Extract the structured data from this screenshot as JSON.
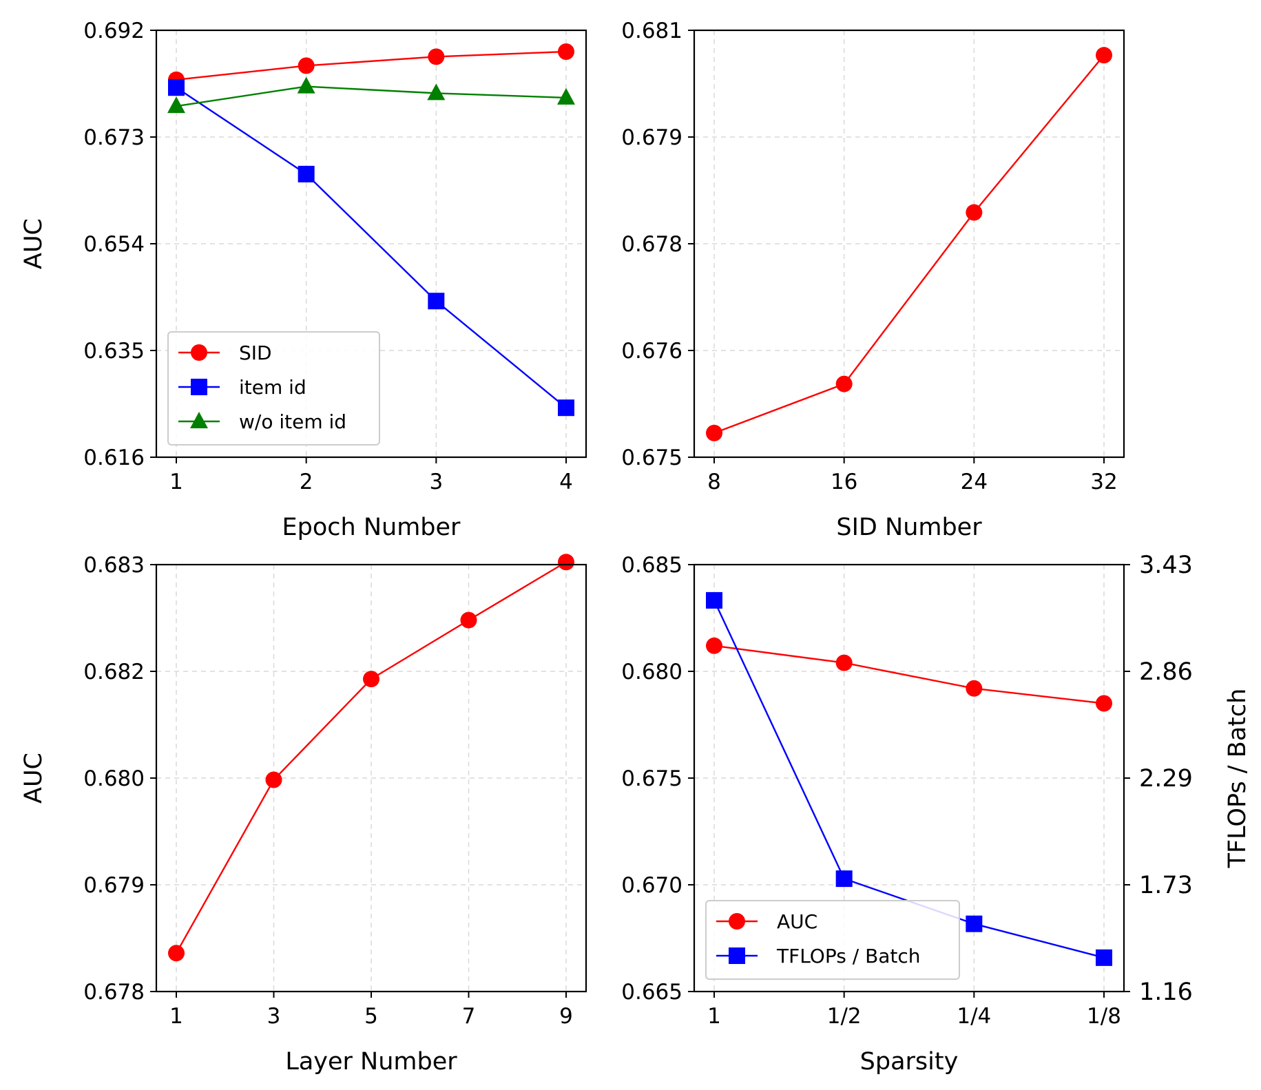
{
  "chart_data": [
    {
      "id": "epoch",
      "type": "line",
      "xlabel": "Epoch Number",
      "ylabel": "AUC",
      "categories": [
        "1",
        "2",
        "3",
        "4"
      ],
      "ylim": [
        0.616,
        0.692
      ],
      "yticks": [
        "0.616",
        "0.635",
        "0.654",
        "0.673",
        "0.692"
      ],
      "grid": true,
      "legend": "lower-left",
      "series": [
        {
          "name": "SID",
          "color": "#ff0000",
          "marker": "circle",
          "values": [
            0.6832,
            0.6857,
            0.6873,
            0.6882
          ]
        },
        {
          "name": "item id",
          "color": "#0000ff",
          "marker": "square",
          "values": [
            0.6818,
            0.6664,
            0.6438,
            0.6248
          ]
        },
        {
          "name": "w/o item id",
          "color": "#008000",
          "marker": "triangle",
          "values": [
            0.6785,
            0.682,
            0.6808,
            0.68
          ]
        }
      ]
    },
    {
      "id": "sid",
      "type": "line",
      "xlabel": "SID Number",
      "ylabel": "",
      "categories": [
        "8",
        "16",
        "24",
        "32"
      ],
      "ylim": [
        0.675,
        0.681
      ],
      "yticks": [
        "0.675",
        "0.676",
        "0.678",
        "0.679",
        "0.681"
      ],
      "grid": true,
      "series": [
        {
          "name": "SID",
          "color": "#ff0000",
          "marker": "circle",
          "values": [
            0.67534,
            0.67603,
            0.67844,
            0.68065
          ]
        }
      ]
    },
    {
      "id": "layer",
      "type": "line",
      "xlabel": "Layer Number",
      "ylabel": "AUC",
      "categories": [
        "1",
        "3",
        "5",
        "7",
        "9"
      ],
      "ylim": [
        0.678,
        0.683
      ],
      "yticks": [
        "0.678",
        "0.679",
        "0.680",
        "0.682",
        "0.683"
      ],
      "grid": true,
      "series": [
        {
          "name": "AUC",
          "color": "#ff0000",
          "marker": "circle",
          "values": [
            0.67845,
            0.68048,
            0.68166,
            0.68235,
            0.68303
          ]
        }
      ]
    },
    {
      "id": "sparsity",
      "type": "line",
      "xlabel": "Sparsity",
      "ylabel": "",
      "ylabel_right": "TFLOPs / Batch",
      "categories": [
        "1",
        "1/2",
        "1/4",
        "1/8"
      ],
      "ylim": [
        0.665,
        0.685
      ],
      "yticks": [
        "0.665",
        "0.670",
        "0.675",
        "0.680",
        "0.685"
      ],
      "ylim_right": [
        1.16,
        3.43
      ],
      "yticks_right": [
        "1.16",
        "1.73",
        "2.29",
        "2.86",
        "3.43"
      ],
      "grid": true,
      "legend": "lower-left",
      "series": [
        {
          "name": "AUC",
          "axis": "left",
          "color": "#ff0000",
          "marker": "circle",
          "values": [
            0.6812,
            0.6804,
            0.6792,
            0.6785
          ]
        },
        {
          "name": "TFLOPs / Batch",
          "axis": "right",
          "color": "#0000ff",
          "marker": "square",
          "values": [
            3.24,
            1.76,
            1.52,
            1.34
          ]
        }
      ]
    }
  ]
}
